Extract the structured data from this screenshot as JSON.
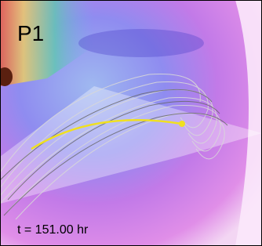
{
  "panel_label": "P1",
  "time_label": "t = 151.00 hr"
}
